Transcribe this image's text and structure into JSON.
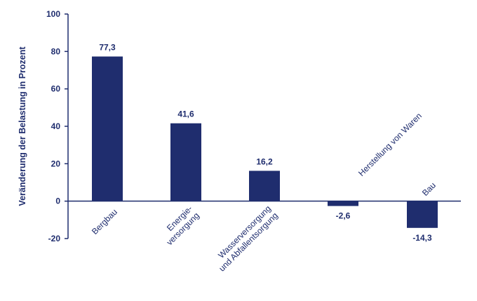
{
  "chart_data": {
    "type": "bar",
    "ylabel": "Veränderung der Belastung in Prozent",
    "ylim": [
      -20,
      100
    ],
    "yticks": [
      100,
      80,
      60,
      40,
      20,
      0,
      -20
    ],
    "bar_color": "#1f2d6e",
    "axis_color": "#1f2d6e",
    "categories": [
      {
        "lines": [
          "Bergbau"
        ]
      },
      {
        "lines": [
          "Energie-",
          "versorgung"
        ]
      },
      {
        "lines": [
          "Wasserversorgung",
          "und Abfallentsorgung"
        ]
      },
      {
        "lines": [
          "Herstellung von Waren"
        ]
      },
      {
        "lines": [
          "Bau"
        ]
      }
    ],
    "values": [
      77.3,
      41.6,
      16.2,
      -2.6,
      -14.3
    ],
    "value_labels": [
      "77,3",
      "41,6",
      "16,2",
      "-2,6",
      "-14,3"
    ]
  }
}
